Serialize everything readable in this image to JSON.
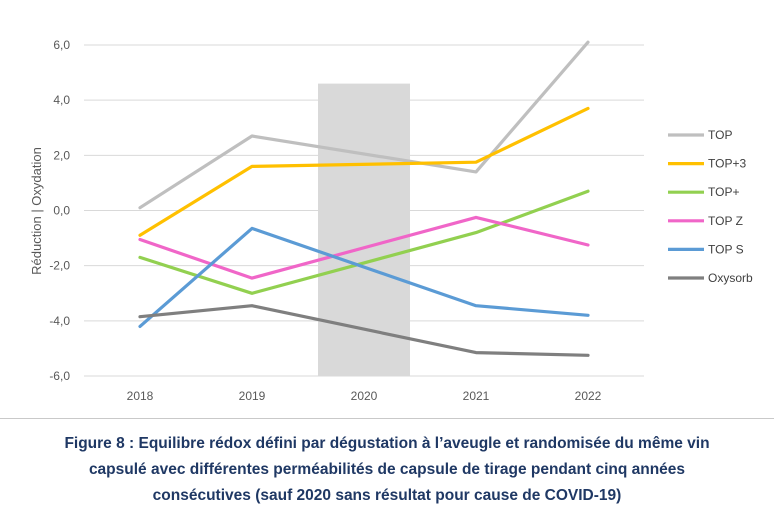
{
  "chart_data": {
    "type": "line",
    "categories": [
      "2018",
      "2019",
      "2020",
      "2021",
      "2022"
    ],
    "ylim": [
      -6,
      6
    ],
    "yticks": [
      6,
      4,
      2,
      0,
      -2,
      -4,
      -6
    ],
    "ytick_labels": [
      "6,0",
      "4,0",
      "2,0",
      "0,0",
      "-2,0",
      "-4,0",
      "-6,0"
    ],
    "ylabel": "Réduction   |   Oxydation",
    "grid": true,
    "legend_position": "right",
    "highlight_band": {
      "category": "2020",
      "color": "#d9d9d9"
    },
    "series": [
      {
        "name": "TOP",
        "color": "#bfbfbf",
        "values": [
          0.1,
          2.7,
          null,
          1.4,
          6.1
        ]
      },
      {
        "name": "TOP+3",
        "color": "#ffc000",
        "values": [
          -0.9,
          1.6,
          null,
          1.75,
          3.7
        ]
      },
      {
        "name": "TOP+",
        "color": "#92d050",
        "values": [
          -1.7,
          -3.0,
          null,
          -0.8,
          0.7
        ]
      },
      {
        "name": "TOP Z",
        "color": "#f066c8",
        "values": [
          -1.05,
          -2.45,
          null,
          -0.25,
          -1.25
        ]
      },
      {
        "name": "TOP S",
        "color": "#5b9bd5",
        "values": [
          -4.2,
          -0.65,
          null,
          -3.45,
          -3.8
        ]
      },
      {
        "name": "Oxysorb",
        "color": "#7f7f7f",
        "values": [
          -3.85,
          -3.45,
          null,
          -5.15,
          -5.25
        ]
      }
    ]
  },
  "caption": {
    "line1": "Figure 8 : Equilibre rédox défini par dégustation à l’aveugle et randomisée du même vin",
    "line2": "capsulé avec différentes perméabilités de capsule de tirage pendant cinq années",
    "line3": "consécutives (sauf 2020 sans résultat pour cause de COVID-19)"
  }
}
